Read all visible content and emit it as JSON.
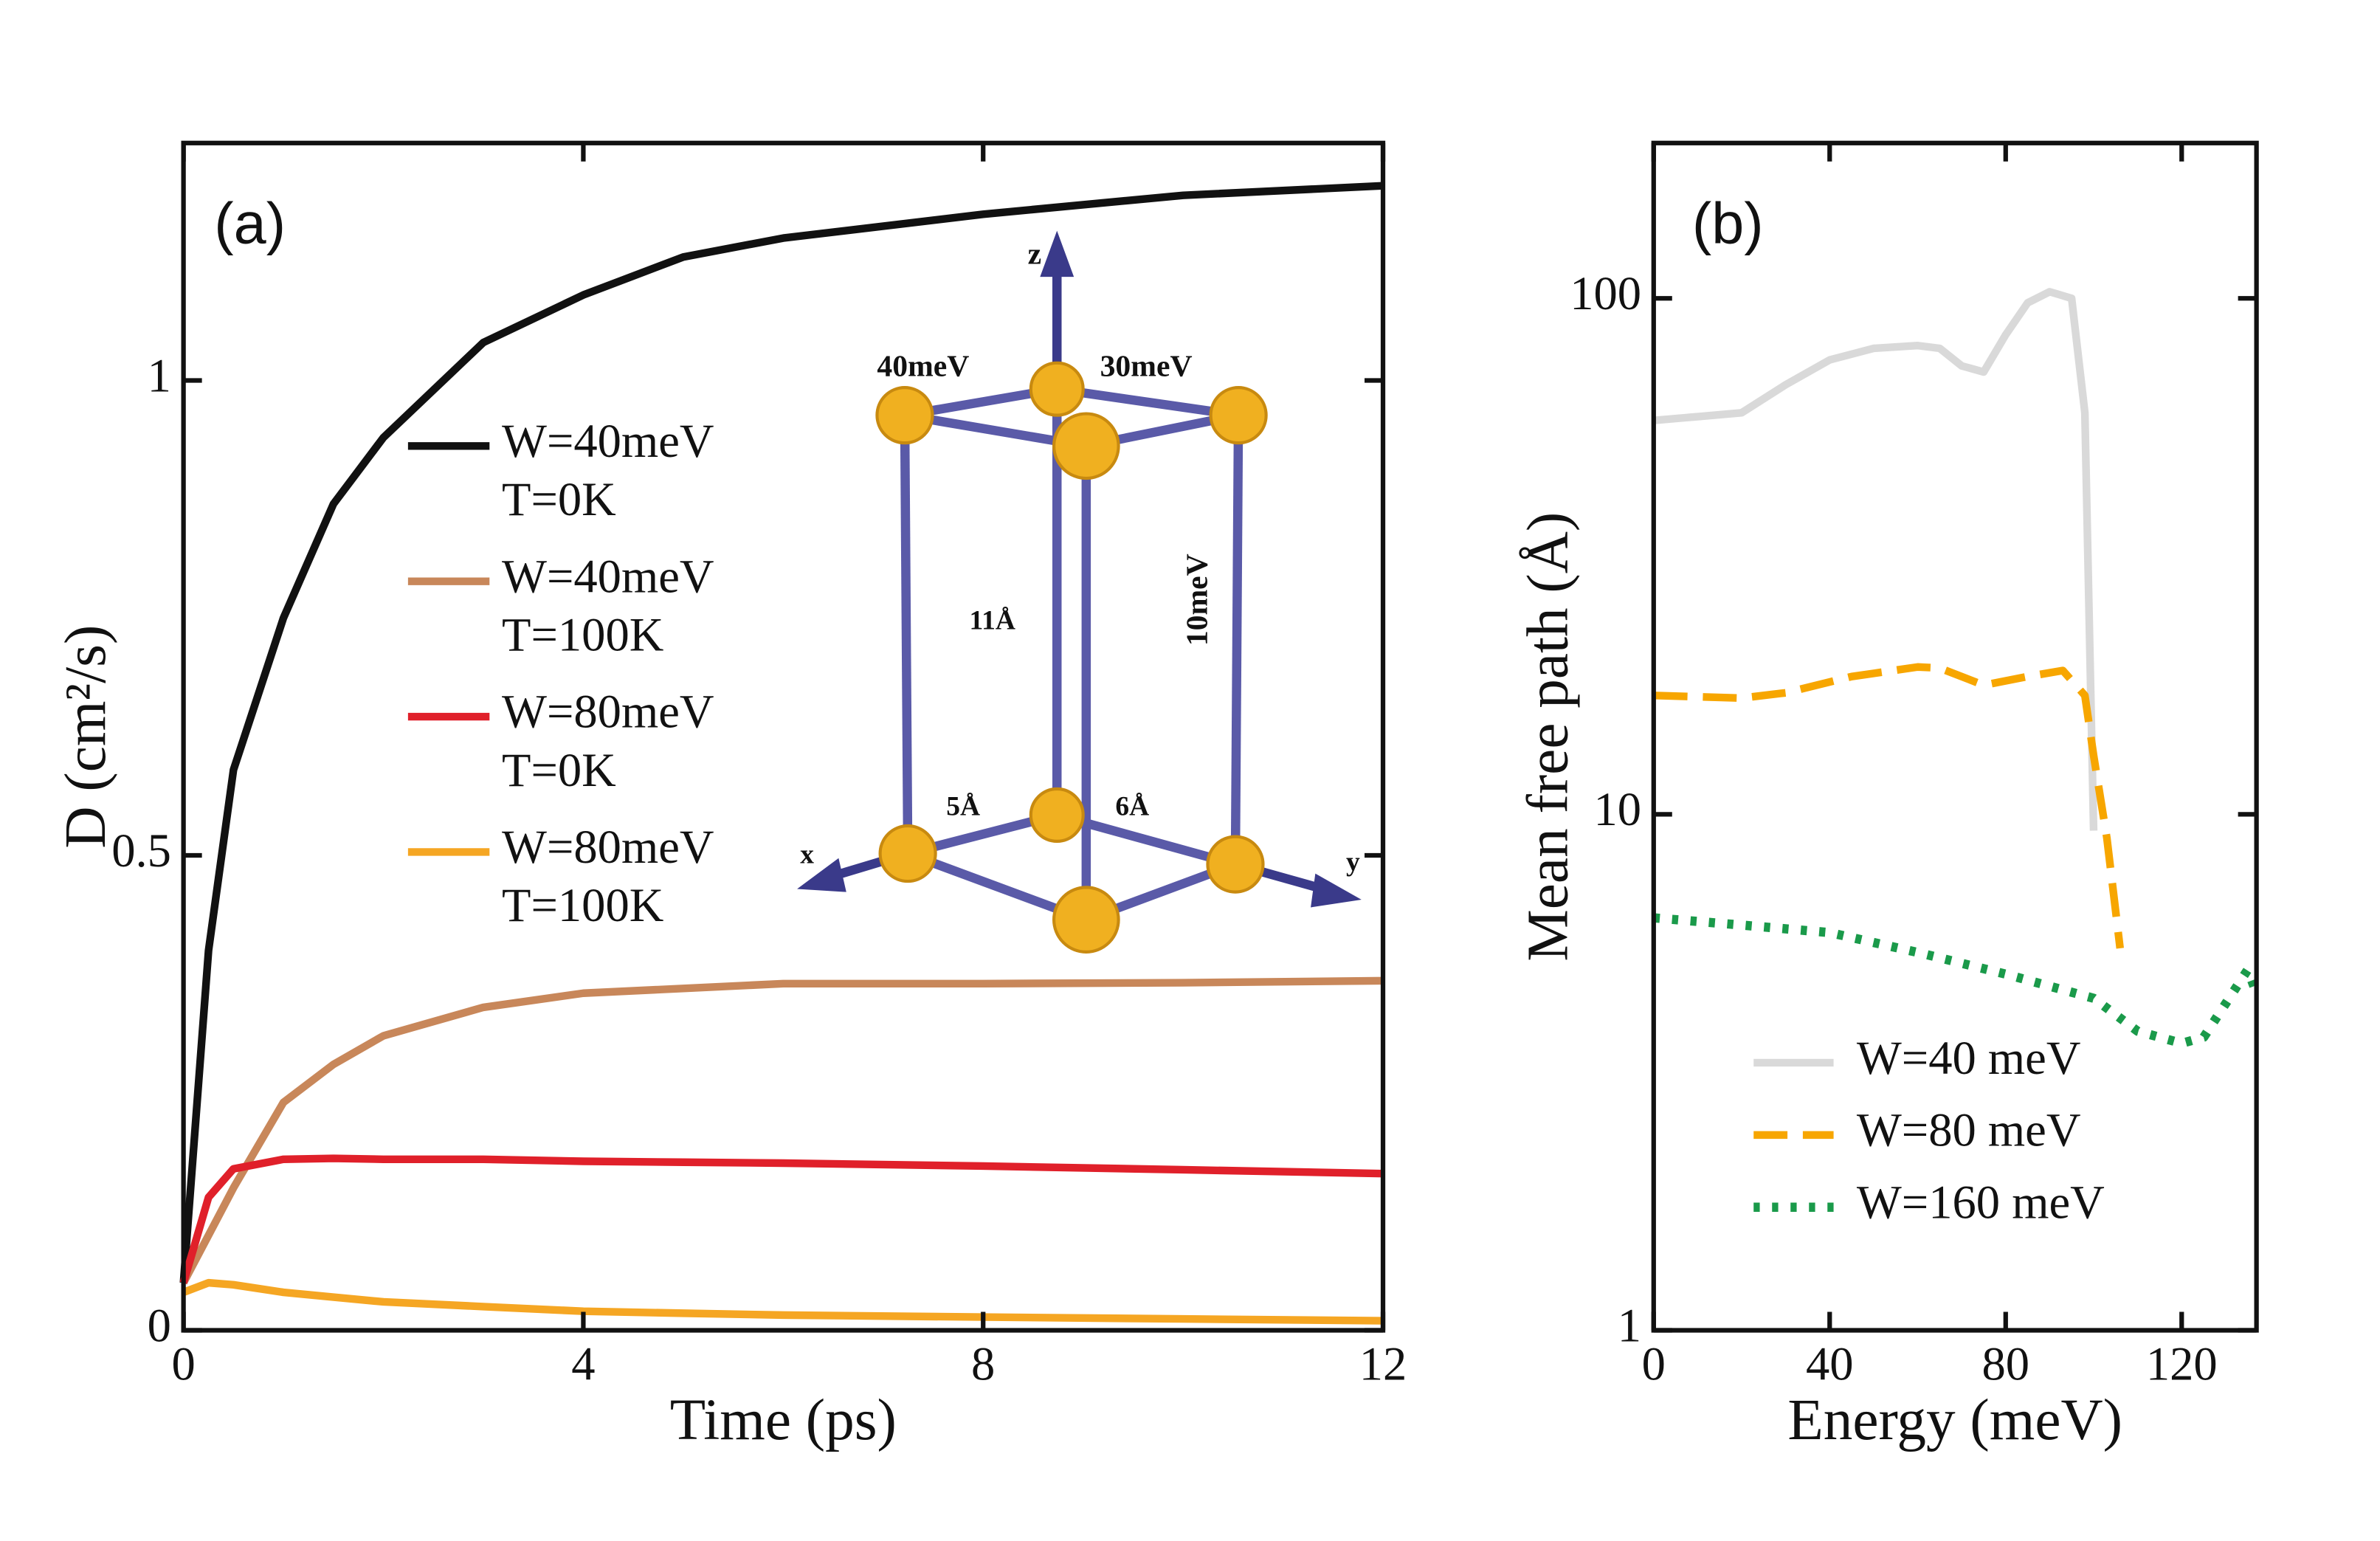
{
  "chart_data": [
    {
      "type": "line",
      "panel_label": "(a)",
      "xlabel": "Time (ps)",
      "ylabel": "D (cm²/s)",
      "xlim": [
        0,
        12
      ],
      "xticks": [
        0,
        4,
        8,
        12
      ],
      "ylim": [
        0,
        1.25
      ],
      "yticks": [
        0,
        0.5,
        1
      ],
      "x": [
        0,
        0.25,
        0.5,
        1,
        1.5,
        2,
        3,
        4,
        5,
        6,
        8,
        10,
        12
      ],
      "series": [
        {
          "name": "W=40meV T=0K",
          "color": "#111111",
          "values": [
            0.05,
            0.4,
            0.59,
            0.75,
            0.87,
            0.94,
            1.04,
            1.09,
            1.13,
            1.15,
            1.175,
            1.195,
            1.205
          ]
        },
        {
          "name": "W=40meV T=100K",
          "color": "#c8875a",
          "values": [
            0.05,
            0.1,
            0.15,
            0.24,
            0.28,
            0.31,
            0.34,
            0.355,
            0.36,
            0.365,
            0.365,
            0.366,
            0.368
          ]
        },
        {
          "name": "W=80meV T=0K",
          "color": "#e0202a",
          "values": [
            0.05,
            0.14,
            0.17,
            0.18,
            0.181,
            0.18,
            0.18,
            0.178,
            0.177,
            0.176,
            0.173,
            0.169,
            0.165
          ]
        },
        {
          "name": "W=80meV T=100K",
          "color": "#f5a623",
          "values": [
            0.04,
            0.05,
            0.048,
            0.04,
            0.035,
            0.03,
            0.025,
            0.02,
            0.018,
            0.016,
            0.014,
            0.012,
            0.01
          ]
        }
      ],
      "inset_labels": [
        "z",
        "40meV",
        "30meV",
        "10meV",
        "11Å",
        "5Å",
        "6Å",
        "x",
        "y"
      ]
    },
    {
      "type": "line",
      "panel_label": "(b)",
      "xlabel": "Energy (meV)",
      "ylabel": "Mean free path (Å)",
      "log_y": true,
      "xlim": [
        0,
        137
      ],
      "xticks": [
        0,
        40,
        80,
        120
      ],
      "ylim": [
        1,
        200
      ],
      "yticks": [
        1,
        10,
        100
      ],
      "series": [
        {
          "name": "W=40 meV",
          "color": "#d9d9d9",
          "style": "solid",
          "x": [
            0,
            10,
            20,
            30,
            40,
            50,
            60,
            65,
            70,
            75,
            80,
            85,
            90,
            95,
            98,
            100
          ],
          "values": [
            58,
            59,
            60,
            68,
            76,
            80,
            81,
            80,
            74,
            72,
            85,
            98,
            103,
            100,
            60,
            9.3
          ]
        },
        {
          "name": "W=80 meV",
          "color": "#f7a600",
          "style": "dashed",
          "x": [
            0,
            20,
            30,
            45,
            60,
            65,
            75,
            85,
            93,
            98,
            100,
            103,
            105,
            106
          ],
          "values": [
            17,
            16.8,
            17.2,
            18.5,
            19.3,
            19.2,
            17.8,
            18.5,
            19,
            17,
            13,
            9,
            6.5,
            5.5
          ]
        },
        {
          "name": "W=160 meV",
          "color": "#1a9a4a",
          "style": "dotted",
          "x": [
            0,
            20,
            40,
            60,
            80,
            100,
            110,
            120,
            125,
            130,
            135,
            137
          ],
          "values": [
            6.3,
            6.1,
            5.9,
            5.4,
            4.9,
            4.4,
            3.8,
            3.6,
            3.7,
            4.3,
            5.0,
            4.5
          ]
        }
      ]
    }
  ]
}
